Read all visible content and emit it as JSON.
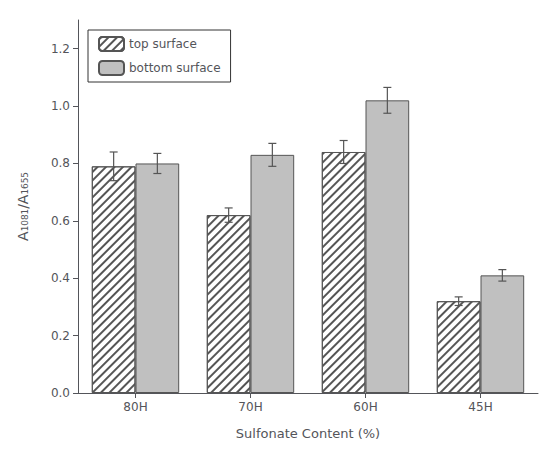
{
  "chart_data": {
    "type": "bar",
    "categories": [
      "80H",
      "70H",
      "60H",
      "45H"
    ],
    "series": [
      {
        "name": "top surface",
        "color": "white",
        "values": [
          0.79,
          0.62,
          0.84,
          0.32
        ],
        "errors": [
          0.05,
          0.025,
          0.04,
          0.015
        ]
      },
      {
        "name": "bottom surface",
        "color": "#c0c0c0",
        "values": [
          0.8,
          0.83,
          1.02,
          0.41
        ],
        "errors": [
          0.035,
          0.04,
          0.045,
          0.02
        ]
      }
    ],
    "xlabel": "Sulfonate Content (%)",
    "ylabel": "A₁₀₈₁/A₁₆₅₅",
    "ylim": [
      0,
      1.3
    ],
    "yticks": [
      {
        "value": 0,
        "label": "0.0"
      },
      0.2,
      0.4,
      0.6,
      0.8,
      {
        "value": 1,
        "label": "1.0"
      },
      1.2
    ],
    "grid": false,
    "legend": "upper left"
  }
}
